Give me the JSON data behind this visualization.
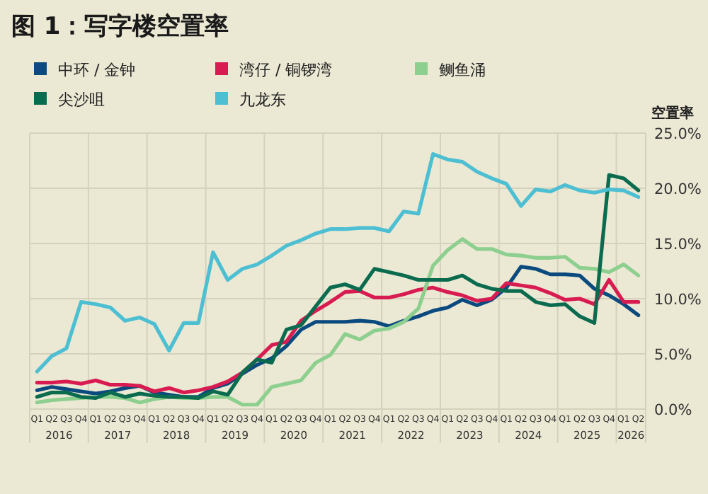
{
  "chart_data": {
    "type": "line",
    "title": "图 1：写字楼空置率",
    "ylabel": "空置率",
    "categories": [
      "Q1",
      "Q2",
      "Q3",
      "Q4",
      "Q1",
      "Q2",
      "Q3",
      "Q4",
      "Q1",
      "Q2",
      "Q3",
      "Q4",
      "Q1",
      "Q2",
      "Q3",
      "Q4",
      "Q1",
      "Q2",
      "Q3",
      "Q4",
      "Q1",
      "Q2",
      "Q3",
      "Q4",
      "Q1",
      "Q2",
      "Q3",
      "Q4",
      "Q1",
      "Q2",
      "Q3",
      "Q4",
      "Q1",
      "Q2",
      "Q3",
      "Q4",
      "Q1",
      "Q2",
      "Q3",
      "Q4",
      "Q1",
      "Q2"
    ],
    "annotations": [
      "2016",
      "2017",
      "2018",
      "2019",
      "2020",
      "2021",
      "2022",
      "2023",
      "2024",
      "2025",
      "2026"
    ],
    "series": [
      {
        "name": "中环 / 金钟",
        "color": "#0b4a7e",
        "values": [
          1.7,
          2.0,
          1.8,
          1.6,
          1.4,
          1.6,
          1.9,
          2.1,
          1.5,
          1.3,
          1.1,
          1.1,
          1.9,
          2.3,
          3.2,
          4.0,
          4.6,
          5.7,
          7.2,
          7.9,
          7.9,
          7.9,
          8.0,
          7.9,
          7.5,
          8.0,
          8.4,
          8.9,
          9.2,
          9.9,
          9.4,
          9.9,
          11.0,
          12.9,
          12.7,
          12.2,
          12.2,
          12.1,
          10.9,
          10.3,
          9.5,
          8.5
        ]
      },
      {
        "name": "湾仔 / 铜锣湾",
        "color": "#d81b50",
        "values": [
          2.4,
          2.4,
          2.5,
          2.3,
          2.6,
          2.2,
          2.2,
          2.1,
          1.6,
          1.9,
          1.5,
          1.7,
          2.0,
          2.5,
          3.3,
          4.5,
          5.8,
          6.1,
          8.0,
          8.9,
          9.7,
          10.6,
          10.7,
          10.1,
          10.1,
          10.4,
          10.8,
          11.0,
          10.6,
          10.3,
          9.8,
          10.0,
          11.4,
          11.2,
          11.0,
          10.5,
          9.9,
          10.0,
          9.5,
          11.7,
          9.7,
          9.7
        ]
      },
      {
        "name": "鲗鱼涌",
        "color": "#8dcf8e",
        "values": [
          0.6,
          0.8,
          0.9,
          1.0,
          1.1,
          1.1,
          1.0,
          0.6,
          0.9,
          1.1,
          1.0,
          1.0,
          1.1,
          1.1,
          0.4,
          0.4,
          2.0,
          2.3,
          2.6,
          4.2,
          4.9,
          6.8,
          6.3,
          7.1,
          7.3,
          7.9,
          9.1,
          13.0,
          14.4,
          15.4,
          14.5,
          14.5,
          14.0,
          13.9,
          13.7,
          13.7,
          13.8,
          12.8,
          12.7,
          12.4,
          13.1,
          12.1
        ]
      },
      {
        "name": "尖沙咀",
        "color": "#0b6b4f",
        "values": [
          1.1,
          1.5,
          1.5,
          1.1,
          1.0,
          1.5,
          1.1,
          1.4,
          1.2,
          1.1,
          1.1,
          1.0,
          1.6,
          1.3,
          3.3,
          4.5,
          4.2,
          7.2,
          7.6,
          9.3,
          11.0,
          11.3,
          10.8,
          12.7,
          12.4,
          12.1,
          11.7,
          11.7,
          11.7,
          12.1,
          11.3,
          10.9,
          10.7,
          10.7,
          9.7,
          9.4,
          9.5,
          8.4,
          7.8,
          21.2,
          20.9,
          19.8
        ]
      },
      {
        "name": "九龙东",
        "color": "#4dbfd3",
        "values": [
          3.4,
          4.8,
          5.5,
          9.7,
          9.5,
          9.2,
          8.0,
          8.3,
          7.7,
          5.3,
          7.8,
          7.8,
          14.2,
          11.7,
          12.7,
          13.1,
          13.9,
          14.8,
          15.3,
          15.9,
          16.3,
          16.3,
          16.4,
          16.4,
          16.1,
          17.9,
          17.7,
          23.1,
          22.6,
          22.4,
          21.5,
          20.9,
          20.4,
          18.4,
          19.9,
          19.7,
          20.3,
          19.8,
          19.6,
          19.9,
          19.8,
          19.2
        ]
      }
    ],
    "ylim": [
      0,
      25
    ],
    "yticks": [
      {
        "value": 0,
        "label": "0.0%"
      },
      {
        "value": 5,
        "label": "5.0%"
      },
      {
        "value": 10,
        "label": "10.0%"
      },
      {
        "value": 15,
        "label": "15.0%"
      },
      {
        "value": 20,
        "label": "20.0%"
      },
      {
        "value": 25,
        "label": "25.0%"
      }
    ],
    "grid": true,
    "legend": "top",
    "marker": "none",
    "line_style": "solid"
  }
}
